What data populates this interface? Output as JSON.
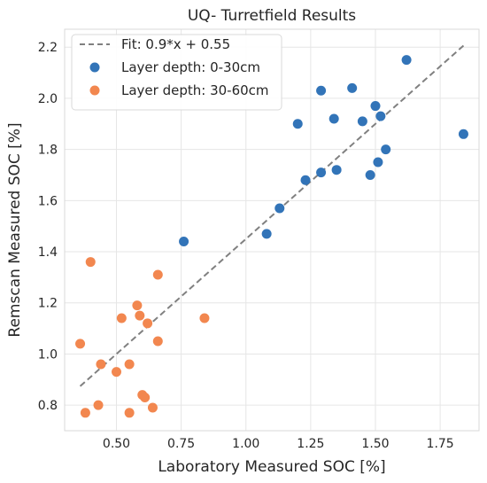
{
  "chart_data": {
    "type": "scatter",
    "title": "UQ- Turretfield Results",
    "xlabel": "Laboratory Measured SOC [%]",
    "ylabel": "Remscan Measured SOC [%]",
    "xlim": [
      0.3,
      1.9
    ],
    "ylim": [
      0.7,
      2.27
    ],
    "xticks": [
      0.5,
      0.75,
      1.0,
      1.25,
      1.5,
      1.75
    ],
    "xtick_labels": [
      "0.50",
      "0.75",
      "1.00",
      "1.25",
      "1.50",
      "1.75"
    ],
    "yticks": [
      0.8,
      1.0,
      1.2,
      1.4,
      1.6,
      1.8,
      2.0,
      2.2
    ],
    "ytick_labels": [
      "0.8",
      "1.0",
      "1.2",
      "1.4",
      "1.6",
      "1.8",
      "2.0",
      "2.2"
    ],
    "grid": true,
    "legend_position": "top-left",
    "fit_line": {
      "label": "Fit: 0.9*x + 0.55",
      "slope": 0.9,
      "intercept": 0.55,
      "x_range": [
        0.36,
        1.84
      ],
      "color": "#808080"
    },
    "series": [
      {
        "name": "Layer depth: 0-30cm",
        "color": "#3274B8",
        "points": [
          {
            "x": 0.76,
            "y": 1.44
          },
          {
            "x": 1.08,
            "y": 1.47
          },
          {
            "x": 1.13,
            "y": 1.57
          },
          {
            "x": 1.23,
            "y": 1.68
          },
          {
            "x": 1.2,
            "y": 1.9
          },
          {
            "x": 1.29,
            "y": 1.71
          },
          {
            "x": 1.29,
            "y": 2.03
          },
          {
            "x": 1.34,
            "y": 1.92
          },
          {
            "x": 1.35,
            "y": 1.72
          },
          {
            "x": 1.41,
            "y": 2.04
          },
          {
            "x": 1.45,
            "y": 1.91
          },
          {
            "x": 1.48,
            "y": 1.7
          },
          {
            "x": 1.5,
            "y": 1.97
          },
          {
            "x": 1.51,
            "y": 1.75
          },
          {
            "x": 1.52,
            "y": 1.93
          },
          {
            "x": 1.54,
            "y": 1.8
          },
          {
            "x": 1.62,
            "y": 2.15
          },
          {
            "x": 1.84,
            "y": 1.86
          }
        ]
      },
      {
        "name": "Layer depth: 30-60cm",
        "color": "#F2874F",
        "points": [
          {
            "x": 0.36,
            "y": 1.04
          },
          {
            "x": 0.38,
            "y": 0.77
          },
          {
            "x": 0.4,
            "y": 1.36
          },
          {
            "x": 0.43,
            "y": 0.8
          },
          {
            "x": 0.44,
            "y": 0.96
          },
          {
            "x": 0.5,
            "y": 0.93
          },
          {
            "x": 0.52,
            "y": 1.14
          },
          {
            "x": 0.55,
            "y": 0.96
          },
          {
            "x": 0.55,
            "y": 0.77
          },
          {
            "x": 0.58,
            "y": 1.19
          },
          {
            "x": 0.59,
            "y": 1.15
          },
          {
            "x": 0.6,
            "y": 0.84
          },
          {
            "x": 0.61,
            "y": 0.83
          },
          {
            "x": 0.62,
            "y": 1.12
          },
          {
            "x": 0.64,
            "y": 0.79
          },
          {
            "x": 0.66,
            "y": 1.31
          },
          {
            "x": 0.66,
            "y": 1.05
          },
          {
            "x": 0.84,
            "y": 1.14
          }
        ]
      }
    ]
  }
}
